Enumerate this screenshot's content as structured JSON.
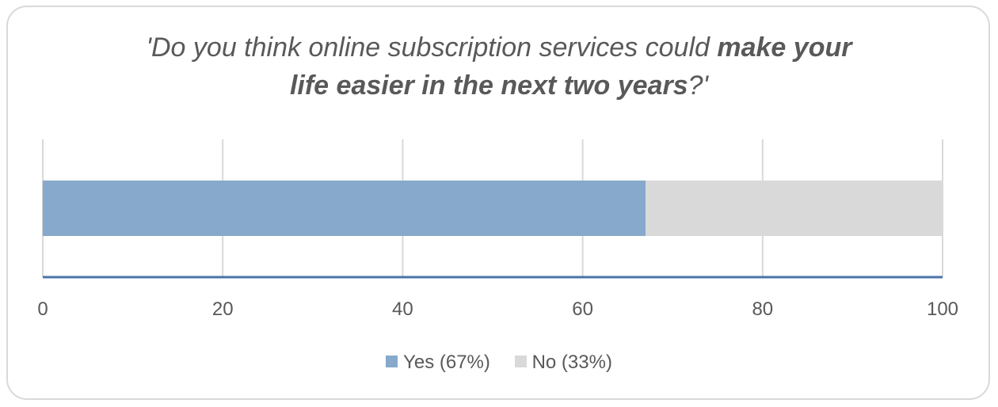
{
  "chart_data": {
    "type": "bar",
    "orientation": "horizontal",
    "stacked": true,
    "title_parts": {
      "line1_plain": "'Do you think online subscription services could ",
      "line1_bold": "make your",
      "line2_bold": "life easier in the next two years",
      "line2_plain": "?'"
    },
    "series": [
      {
        "name": "Yes (67%)",
        "values": [
          67
        ],
        "color": "#87a9cb"
      },
      {
        "name": "No (33%)",
        "values": [
          33
        ],
        "color": "#d9d9d9"
      }
    ],
    "xlim": [
      0,
      100
    ],
    "x_ticks": [
      "0",
      "20",
      "40",
      "60",
      "80",
      "100"
    ],
    "grid": true,
    "legend_position": "bottom",
    "colors": {
      "gridline": "#d9d9d9",
      "axis": "#4a74a8",
      "text": "#595959"
    }
  }
}
